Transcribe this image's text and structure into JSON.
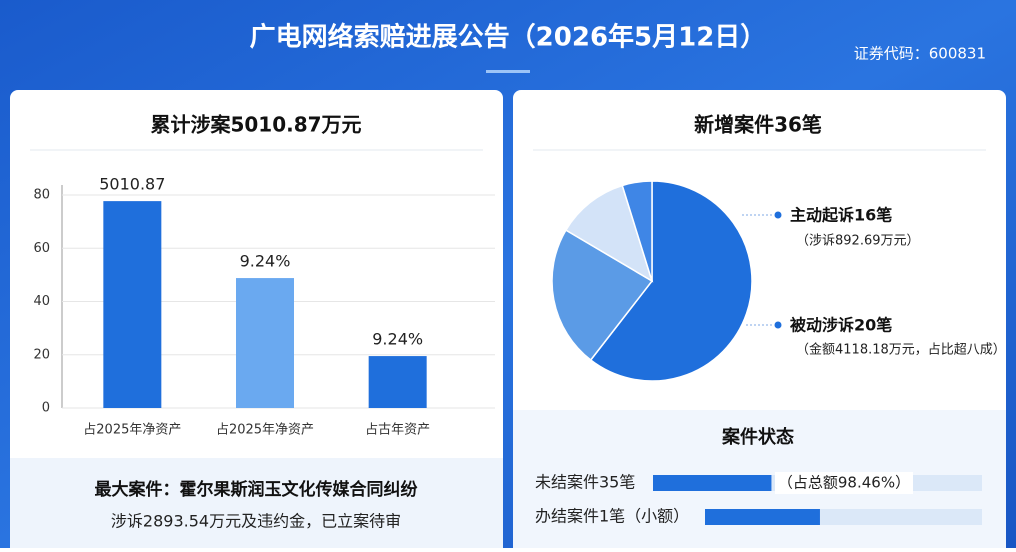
{
  "header": {
    "title": "广电网络索赔进展公告（2026年5月12日）",
    "stock_code": "证券代码：600831"
  },
  "chart_data": [
    {
      "type": "bar",
      "title": "累计涉案5010.87万元",
      "categories": [
        "占2025年净资产",
        "占2025年净资产",
        "占古年资产"
      ],
      "values": [
        77.7,
        48.8,
        19.5
      ],
      "colors": [
        "#1f6fdc",
        "#6aa9f0",
        "#1f6fdc"
      ],
      "annotations": [
        "5010.87",
        "9.24%",
        "9.24%"
      ],
      "ylim": [
        0,
        80
      ],
      "yticks": [
        0,
        20,
        40,
        60,
        80
      ],
      "grid": true
    },
    {
      "type": "pie",
      "title": "新增案件36笔",
      "categories": [
        null,
        null,
        null,
        null
      ],
      "values": [
        60.5,
        23,
        11.7,
        4.8
      ],
      "colors": [
        "#1f6fdc",
        "#5b9be6",
        "#d3e3f8",
        "#3f86e6"
      ],
      "annotations": [
        "主动起诉16笔",
        "（涉诉892.69万元）",
        "被动涉诉20笔",
        "（金额4118.18万元，占比超八成）"
      ]
    },
    {
      "type": "progress",
      "title": "案件状态",
      "categories": [
        "未结案件35笔",
        "办结案件1笔（小额）"
      ],
      "values": [
        36,
        41.5
      ],
      "xlim": [
        0,
        100
      ],
      "color": "#1f6fdc",
      "annotations": [
        "（占总额98.46%）"
      ]
    }
  ],
  "footer": {
    "title": "最大案件：霍尔果斯润玉文化传媒合同纠纷",
    "text": "涉诉2893.54万元及违约金，已立案待审"
  }
}
